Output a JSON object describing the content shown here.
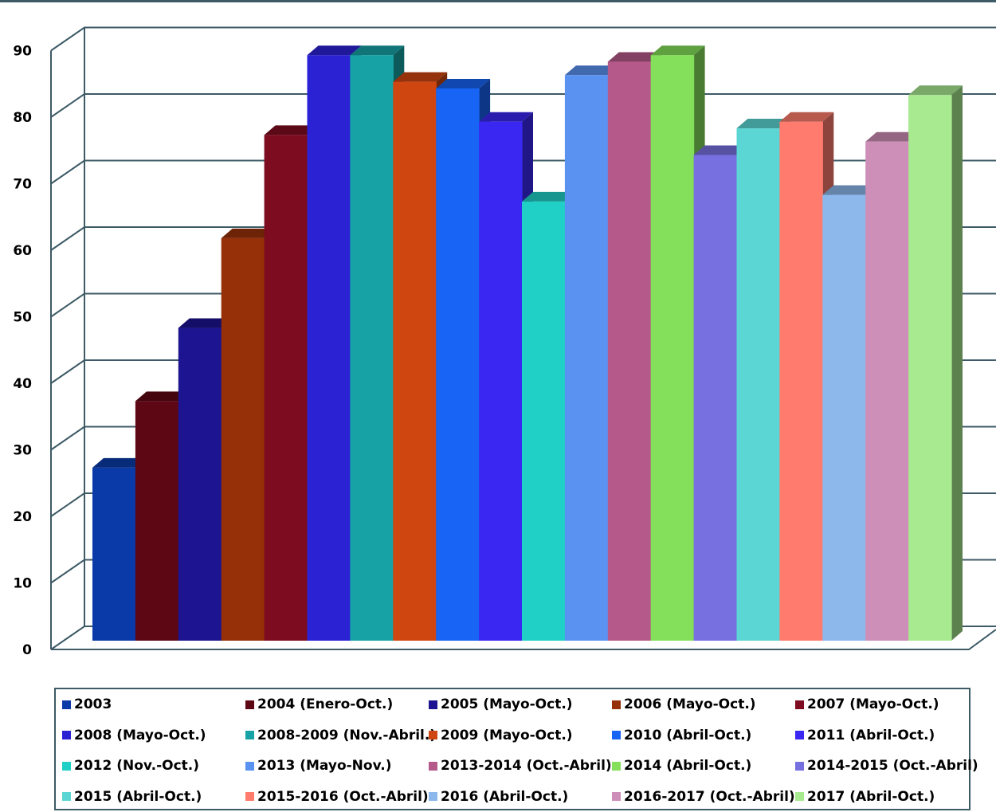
{
  "chart_data": {
    "type": "bar",
    "categories": [
      "2003",
      "2004 (Enero-Oct.)",
      "2005 (Mayo-Oct.)",
      "2006 (Mayo-Oct.)",
      "2007 (Mayo-Oct.)",
      "2008 (Mayo-Oct.)",
      "2008-2009 (Nov.-Abril.)",
      "2009 (Mayo-Oct.)",
      "2010 (Abril-Oct.)",
      "2011 (Abril-Oct.)",
      "2012 (Nov.-Oct.)",
      "2013 (Mayo-Nov.)",
      "2013-2014 (Oct.-Abril)",
      "2014 (Abril-Oct.)",
      "2014-2015 (Oct.-Abril)",
      "2015 (Abril-Oct.)",
      "2015-2016 (Oct.-Abril)",
      "2016 (Abril-Oct.)",
      "2016-2017 (Oct.-Abril)",
      "2017 (Abril-Oct.)"
    ],
    "values": [
      26,
      36,
      47,
      60.5,
      76,
      88,
      88,
      84,
      83,
      78,
      66,
      85,
      87,
      88,
      73,
      77,
      78,
      67,
      75,
      82
    ],
    "colors": [
      "#0a3aa8",
      "#5e0714",
      "#1c1490",
      "#963008",
      "#7e0c20",
      "#2b22d4",
      "#17a3a6",
      "#cf4611",
      "#1864f4",
      "#3a28f2",
      "#20d0c6",
      "#5a92f2",
      "#b5598a",
      "#84e05a",
      "#7770e0",
      "#5cd6d4",
      "#ff7b6d",
      "#8cb8ec",
      "#cd8eb8",
      "#a8ea90"
    ],
    "yticks": [
      "0",
      "10",
      "20",
      "30",
      "40",
      "50",
      "60",
      "70",
      "80",
      "90"
    ],
    "ylim": [
      0,
      90
    ],
    "grid": true,
    "legend_position": "bottom",
    "style": "3d-column"
  }
}
